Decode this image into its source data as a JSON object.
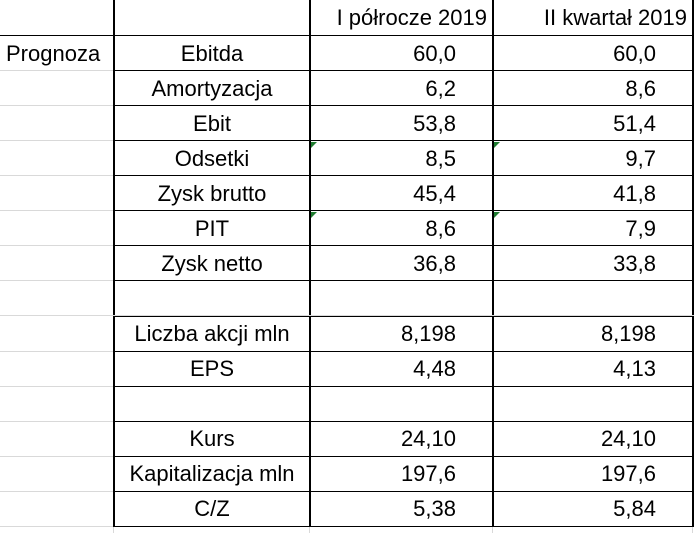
{
  "header": {
    "col_a": "",
    "col_b": "",
    "col_c": "I półrocze 2019",
    "col_d": "II kwartał 2019"
  },
  "section_label": "Prognoza",
  "rows": [
    {
      "label": "Ebitda",
      "h1": "60,0",
      "q2": "60,0"
    },
    {
      "label": "Amortyzacja",
      "h1": "6,2",
      "q2": "8,6"
    },
    {
      "label": "Ebit",
      "h1": "53,8",
      "q2": "51,4"
    },
    {
      "label": "Odsetki",
      "h1": "8,5",
      "q2": "9,7"
    },
    {
      "label": "Zysk brutto",
      "h1": "45,4",
      "q2": "41,8"
    },
    {
      "label": "PIT",
      "h1": "8,6",
      "q2": "7,9"
    },
    {
      "label": "Zysk netto",
      "h1": "36,8",
      "q2": "33,8"
    },
    {
      "label": "",
      "h1": "",
      "q2": ""
    },
    {
      "label": "Liczba akcji mln",
      "h1": "8,198",
      "q2": "8,198"
    },
    {
      "label": "EPS",
      "h1": "4,48",
      "q2": "4,13"
    },
    {
      "label": "",
      "h1": "",
      "q2": ""
    },
    {
      "label": "Kurs",
      "h1": "24,10",
      "q2": "24,10"
    },
    {
      "label": "Kapitalizacja mln",
      "h1": "197,6",
      "q2": "197,6"
    },
    {
      "label": "C/Z",
      "h1": "5,38",
      "q2": "5,84"
    }
  ],
  "colors": {
    "border": "#000000",
    "gridline": "#d9d9d9",
    "comment_marker": "#1e7b2f"
  }
}
